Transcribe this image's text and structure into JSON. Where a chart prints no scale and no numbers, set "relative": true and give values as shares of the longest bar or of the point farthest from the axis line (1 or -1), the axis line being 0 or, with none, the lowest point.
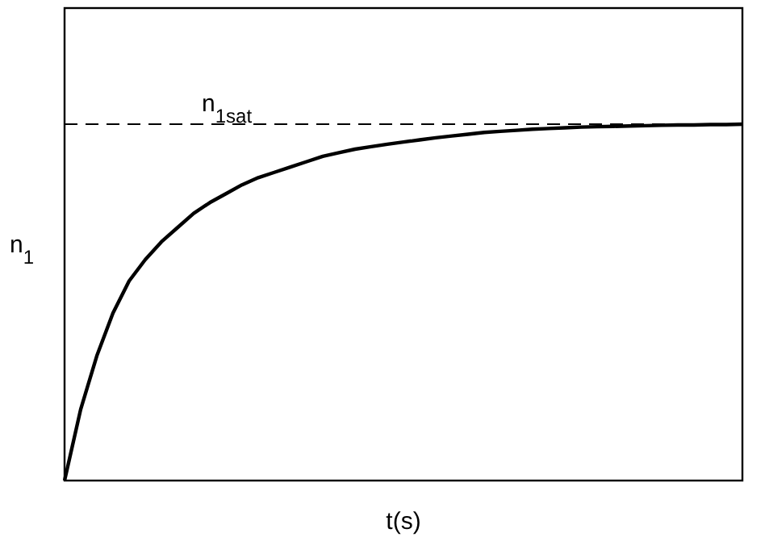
{
  "chart_data": {
    "type": "line",
    "xlabel": "t(s)",
    "ylabel": "n$_{1}$",
    "relative": true,
    "line_style": "solid",
    "color": "#000000",
    "categories": [
      null,
      null,
      null,
      null,
      null,
      null,
      null,
      null,
      null,
      null,
      null,
      null,
      null,
      null,
      null,
      null,
      null,
      null,
      null,
      null,
      null,
      null,
      null,
      null,
      null,
      null,
      null,
      null,
      null,
      null,
      null,
      null,
      null,
      null,
      null,
      null,
      null,
      null,
      null,
      null,
      null,
      null,
      null
    ],
    "values": [
      0,
      0.2,
      0.35,
      0.47,
      0.56,
      0.62,
      0.67,
      0.71,
      0.75,
      0.78,
      0.805,
      0.83,
      0.85,
      0.865,
      0.88,
      0.895,
      0.91,
      0.92,
      0.93,
      0.937,
      0.944,
      0.95,
      0.956,
      0.962,
      0.967,
      0.972,
      0.977,
      0.98,
      0.983,
      0.986,
      0.988,
      0.99,
      0.992,
      0.993,
      0.994,
      0.995,
      0.996,
      0.997,
      0.998,
      0.998,
      0.999,
      0.999,
      1
    ],
    "ref_lines": [
      {
        "axis": "y",
        "value": 1,
        "label": "n$_{1sat}$",
        "line_style": "dashed"
      }
    ]
  }
}
